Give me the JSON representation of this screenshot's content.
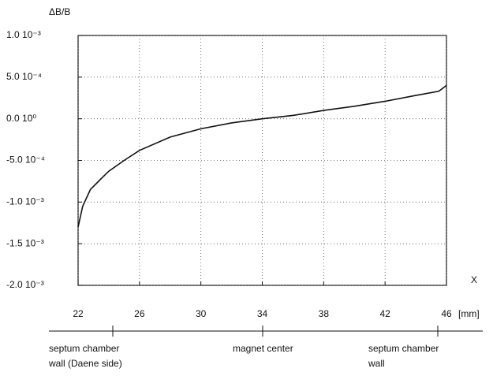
{
  "chart_data": {
    "type": "line",
    "y_label": "ΔB/B",
    "x_label": "X",
    "x_unit": "[mm]",
    "xlim": [
      22,
      46
    ],
    "xticks": [
      22,
      26,
      30,
      34,
      38,
      42,
      46
    ],
    "ylim": [
      -0.002,
      0.001
    ],
    "yticks": [
      {
        "value": -0.002,
        "label": "-2.0 10⁻³"
      },
      {
        "value": -0.0015,
        "label": "-1.5 10⁻³"
      },
      {
        "value": -0.001,
        "label": "-1.0 10⁻³"
      },
      {
        "value": -0.0005,
        "label": "-5.0 10⁻⁴"
      },
      {
        "value": 0,
        "label": "0.0 10⁰"
      },
      {
        "value": 0.0005,
        "label": "5.0 10⁻⁴"
      },
      {
        "value": 0.001,
        "label": "1.0 10⁻³"
      }
    ],
    "grid": true,
    "series": [
      {
        "color": "#111111",
        "x": [
          22.0,
          22.3,
          22.8,
          23.5,
          24,
          25,
          26,
          28,
          30,
          32,
          34,
          36,
          38,
          40,
          42,
          44,
          45.5,
          46
        ],
        "values": [
          -0.0013,
          -0.00105,
          -0.00085,
          -0.00072,
          -0.00063,
          -0.0005,
          -0.00038,
          -0.00022,
          -0.00012,
          -5e-05,
          0.0,
          4e-05,
          0.0001,
          0.00015,
          0.00021,
          0.00028,
          0.00033,
          0.0004
        ]
      }
    ],
    "annotations": [
      {
        "lines": [
          "septum  chamber",
          "wall (Daene side)"
        ]
      },
      {
        "lines": [
          "magnet  center"
        ]
      },
      {
        "lines": [
          "septum  chamber",
          "wall"
        ]
      }
    ]
  }
}
